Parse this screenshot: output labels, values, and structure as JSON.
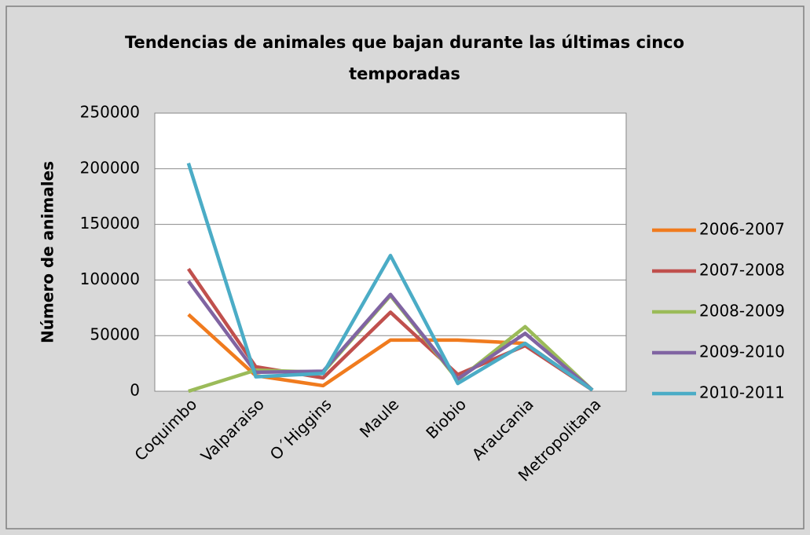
{
  "chart_data": {
    "type": "line",
    "title": "Tendencias de animales que bajan durante las últimas cinco temporadas",
    "y_label": "Número de animales",
    "categories": [
      "Coquimbo",
      "Valparaiso",
      "O´Higgins",
      "Maule",
      "Biobio",
      "Araucania",
      "Metropolitana"
    ],
    "series": [
      {
        "name": "2006-2007",
        "color": "#f07b1e",
        "values": [
          69000,
          14000,
          5000,
          46000,
          46000,
          43000,
          1000
        ]
      },
      {
        "name": "2007-2008",
        "color": "#c0504d",
        "values": [
          110000,
          22000,
          12000,
          71000,
          15000,
          41000,
          1000
        ]
      },
      {
        "name": "2008-2009",
        "color": "#9bbb59",
        "values": [
          0,
          19000,
          17000,
          86000,
          10000,
          58000,
          1000
        ]
      },
      {
        "name": "2009-2010",
        "color": "#8064a2",
        "values": [
          99000,
          17000,
          18000,
          87000,
          11000,
          52000,
          1000
        ]
      },
      {
        "name": "2010-2011",
        "color": "#4bacc6",
        "values": [
          205000,
          13000,
          16000,
          122000,
          7000,
          43000,
          1000
        ]
      }
    ],
    "ylim": [
      0,
      250000
    ],
    "yticks": [
      0,
      50000,
      100000,
      150000,
      200000,
      250000
    ],
    "grid": true,
    "legend": "right"
  }
}
